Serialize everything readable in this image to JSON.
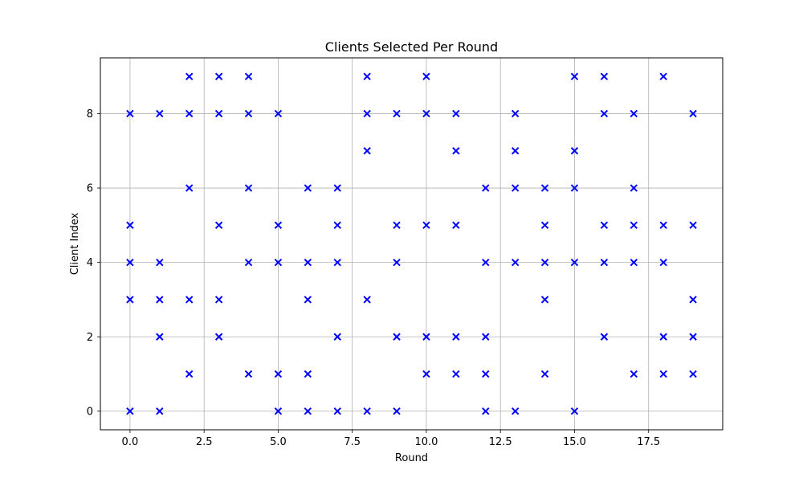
{
  "chart_data": {
    "type": "scatter",
    "title": "Clients Selected Per Round",
    "xlabel": "Round",
    "ylabel": "Client Index",
    "xlim": [
      -1,
      20
    ],
    "ylim": [
      -0.5,
      9.5
    ],
    "xticks": [
      0.0,
      2.5,
      5.0,
      7.5,
      10.0,
      12.5,
      15.0,
      17.5
    ],
    "xtick_labels": [
      "0.0",
      "2.5",
      "5.0",
      "7.5",
      "10.0",
      "12.5",
      "15.0",
      "17.5"
    ],
    "yticks": [
      0,
      2,
      4,
      6,
      8
    ],
    "ytick_labels": [
      "0",
      "2",
      "4",
      "6",
      "8"
    ],
    "grid": true,
    "marker": "x",
    "color": "#0000ff",
    "series": [
      {
        "points": [
          [
            0,
            0
          ],
          [
            0,
            3
          ],
          [
            0,
            4
          ],
          [
            0,
            5
          ],
          [
            0,
            8
          ],
          [
            1,
            0
          ],
          [
            1,
            2
          ],
          [
            1,
            3
          ],
          [
            1,
            4
          ],
          [
            1,
            8
          ],
          [
            2,
            1
          ],
          [
            2,
            3
          ],
          [
            2,
            6
          ],
          [
            2,
            8
          ],
          [
            2,
            9
          ],
          [
            3,
            2
          ],
          [
            3,
            3
          ],
          [
            3,
            5
          ],
          [
            3,
            8
          ],
          [
            3,
            9
          ],
          [
            4,
            1
          ],
          [
            4,
            4
          ],
          [
            4,
            6
          ],
          [
            4,
            8
          ],
          [
            4,
            9
          ],
          [
            5,
            0
          ],
          [
            5,
            1
          ],
          [
            5,
            4
          ],
          [
            5,
            5
          ],
          [
            5,
            8
          ],
          [
            6,
            0
          ],
          [
            6,
            1
          ],
          [
            6,
            3
          ],
          [
            6,
            4
          ],
          [
            6,
            6
          ],
          [
            7,
            0
          ],
          [
            7,
            2
          ],
          [
            7,
            4
          ],
          [
            7,
            5
          ],
          [
            7,
            6
          ],
          [
            8,
            0
          ],
          [
            8,
            3
          ],
          [
            8,
            7
          ],
          [
            8,
            8
          ],
          [
            8,
            9
          ],
          [
            9,
            0
          ],
          [
            9,
            2
          ],
          [
            9,
            4
          ],
          [
            9,
            5
          ],
          [
            9,
            8
          ],
          [
            10,
            1
          ],
          [
            10,
            2
          ],
          [
            10,
            5
          ],
          [
            10,
            8
          ],
          [
            10,
            9
          ],
          [
            11,
            1
          ],
          [
            11,
            2
          ],
          [
            11,
            5
          ],
          [
            11,
            7
          ],
          [
            11,
            8
          ],
          [
            12,
            0
          ],
          [
            12,
            1
          ],
          [
            12,
            2
          ],
          [
            12,
            4
          ],
          [
            12,
            6
          ],
          [
            13,
            0
          ],
          [
            13,
            4
          ],
          [
            13,
            6
          ],
          [
            13,
            7
          ],
          [
            13,
            8
          ],
          [
            14,
            1
          ],
          [
            14,
            3
          ],
          [
            14,
            4
          ],
          [
            14,
            5
          ],
          [
            14,
            6
          ],
          [
            15,
            0
          ],
          [
            15,
            4
          ],
          [
            15,
            6
          ],
          [
            15,
            7
          ],
          [
            15,
            9
          ],
          [
            16,
            2
          ],
          [
            16,
            4
          ],
          [
            16,
            5
          ],
          [
            16,
            8
          ],
          [
            16,
            9
          ],
          [
            17,
            1
          ],
          [
            17,
            4
          ],
          [
            17,
            5
          ],
          [
            17,
            6
          ],
          [
            17,
            8
          ],
          [
            18,
            1
          ],
          [
            18,
            2
          ],
          [
            18,
            4
          ],
          [
            18,
            5
          ],
          [
            18,
            9
          ],
          [
            19,
            1
          ],
          [
            19,
            2
          ],
          [
            19,
            3
          ],
          [
            19,
            5
          ],
          [
            19,
            8
          ]
        ]
      }
    ]
  }
}
